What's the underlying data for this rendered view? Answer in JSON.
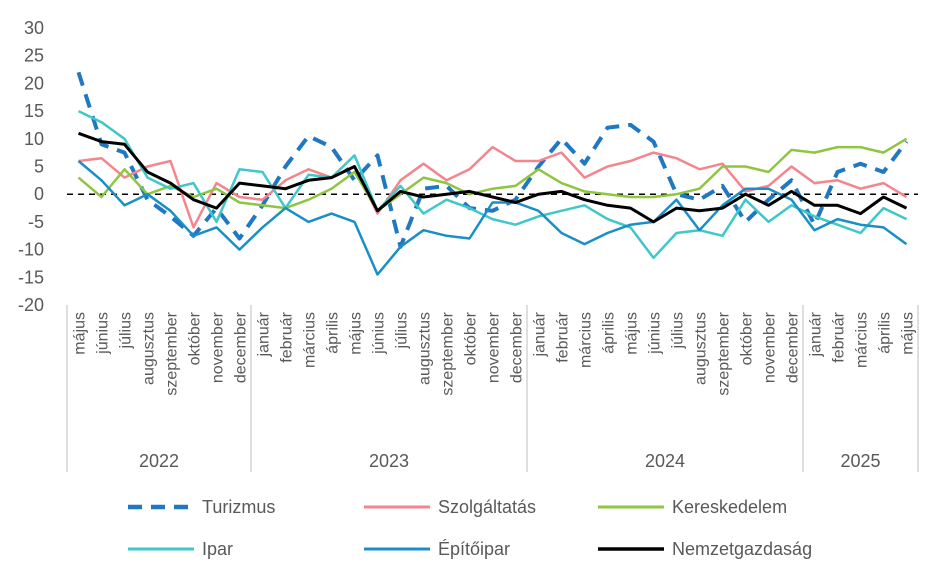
{
  "chart_data": {
    "type": "line",
    "ylim": [
      -20,
      30
    ],
    "yticks": [
      -20,
      -15,
      -10,
      -5,
      0,
      5,
      10,
      15,
      20,
      25,
      30
    ],
    "grid": false,
    "legend_position": "bottom",
    "x": [
      "május",
      "június",
      "július",
      "augusztus",
      "szeptember",
      "október",
      "november",
      "december",
      "január",
      "február",
      "március",
      "április",
      "május",
      "június",
      "július",
      "augusztus",
      "szeptember",
      "október",
      "november",
      "december",
      "január",
      "február",
      "március",
      "április",
      "május",
      "június",
      "július",
      "augusztus",
      "szeptember",
      "október",
      "november",
      "december",
      "január",
      "február",
      "március",
      "április",
      "május"
    ],
    "years": [
      {
        "label": "2022",
        "start": 0,
        "end": 7
      },
      {
        "label": "2023",
        "start": 8,
        "end": 19
      },
      {
        "label": "2024",
        "start": 20,
        "end": 31
      },
      {
        "label": "2025",
        "start": 32,
        "end": 36
      }
    ],
    "series": [
      {
        "name": "Turizmus",
        "color": "#1f78c1",
        "dash": "14,9",
        "width": 4,
        "values": [
          22,
          9,
          7.5,
          -1,
          -4,
          -7.5,
          -2.5,
          -8,
          -2,
          5,
          10.5,
          8.5,
          2.5,
          7,
          -9.5,
          1,
          1.5,
          -2.5,
          -3,
          -1,
          5,
          10,
          5.5,
          12,
          12.5,
          9.5,
          0,
          -1,
          1.5,
          -5,
          -1,
          2.5,
          -5.5,
          4,
          5.5,
          4,
          9.5
        ]
      },
      {
        "name": "Szolgáltatás",
        "color": "#f4858e",
        "dash": "",
        "width": 2.5,
        "values": [
          6,
          6.5,
          3,
          5,
          6,
          -6,
          2,
          -0.5,
          -1,
          2.5,
          4.5,
          3,
          5,
          -3.5,
          2.5,
          5.5,
          2.5,
          4.5,
          8.5,
          6,
          6,
          7.5,
          3,
          5,
          6,
          7.5,
          6.5,
          4.5,
          5.5,
          0.5,
          1.5,
          5,
          2,
          2.5,
          1,
          2,
          -0.5
        ]
      },
      {
        "name": "Kereskedelem",
        "color": "#8ec63f",
        "dash": "",
        "width": 2.5,
        "values": [
          3,
          -0.5,
          4.5,
          0,
          1.5,
          -0.5,
          1,
          -1.5,
          -2,
          -2.5,
          -1,
          1,
          4,
          -3,
          0,
          3,
          2,
          0,
          1,
          1.5,
          4.5,
          2,
          0.5,
          0,
          -0.5,
          -0.5,
          0,
          1,
          5,
          5,
          4,
          8,
          7.5,
          8.5,
          8.5,
          7.5,
          10
        ]
      },
      {
        "name": "Ipar",
        "color": "#3fc7c9",
        "dash": "",
        "width": 2.5,
        "values": [
          15,
          13,
          10,
          3,
          1,
          2,
          -5,
          4.5,
          4,
          -2.5,
          3.5,
          3,
          7,
          -3,
          1.5,
          -3.5,
          -1,
          -2.5,
          -4.5,
          -5.5,
          -4,
          -3,
          -2,
          -4.5,
          -6,
          -11.5,
          -7,
          -6.5,
          -7.5,
          -1,
          -5,
          -2,
          -4,
          -5.5,
          -7,
          -2.5,
          -4.5
        ]
      },
      {
        "name": "Építőipar",
        "color": "#1a8fc7",
        "dash": "",
        "width": 2.5,
        "values": [
          6,
          2.5,
          -2,
          0,
          -3,
          -7.5,
          -6,
          -10,
          -6,
          -2.5,
          -5,
          -3.5,
          -5,
          -14.5,
          -9.5,
          -6.5,
          -7.5,
          -8,
          -1.5,
          -1.5,
          -3,
          -7,
          -9,
          -7,
          -5.5,
          -5,
          -1,
          -6.5,
          -2,
          1,
          1,
          -1,
          -6.5,
          -4.5,
          -5.5,
          -6,
          -9
        ]
      },
      {
        "name": "Nemzetgazdaság",
        "color": "#000000",
        "dash": "",
        "width": 3,
        "values": [
          11,
          9.5,
          9,
          4,
          2,
          -1,
          -2.5,
          2,
          1.5,
          1,
          2.5,
          3,
          5,
          -3,
          0.5,
          -0.5,
          0,
          0.5,
          -0.5,
          -1.5,
          0,
          0.5,
          -1,
          -2,
          -2.5,
          -5,
          -2.5,
          -3,
          -2.5,
          0,
          -2,
          0.5,
          -2,
          -2,
          -3.5,
          -0.5,
          -2.5
        ]
      }
    ]
  }
}
